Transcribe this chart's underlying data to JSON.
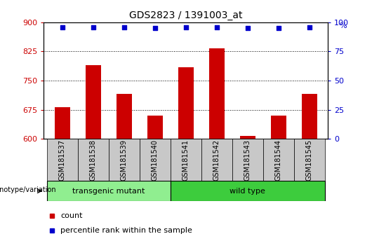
{
  "title": "GDS2823 / 1391003_at",
  "samples": [
    "GSM181537",
    "GSM181538",
    "GSM181539",
    "GSM181540",
    "GSM181541",
    "GSM181542",
    "GSM181543",
    "GSM181544",
    "GSM181545"
  ],
  "counts": [
    682,
    790,
    715,
    660,
    785,
    833,
    608,
    660,
    715
  ],
  "percentile_ranks": [
    96,
    96,
    96,
    95,
    96,
    96,
    95,
    95,
    96
  ],
  "ylim_left": [
    600,
    900
  ],
  "ylim_right": [
    0,
    100
  ],
  "yticks_left": [
    600,
    675,
    750,
    825,
    900
  ],
  "yticks_right": [
    0,
    25,
    50,
    75,
    100
  ],
  "bar_color": "#cc0000",
  "dot_color": "#0000cc",
  "bar_width": 0.5,
  "groups": [
    {
      "label": "transgenic mutant",
      "start": 0,
      "end": 4,
      "color": "#90ee90"
    },
    {
      "label": "wild type",
      "start": 4,
      "end": 9,
      "color": "#3dcc3d"
    }
  ],
  "group_label": "genotype/variation",
  "legend_count_label": "count",
  "legend_pct_label": "percentile rank within the sample",
  "tick_label_area_color": "#c8c8c8",
  "title_fontsize": 10,
  "tick_fontsize": 8,
  "label_fontsize": 7
}
